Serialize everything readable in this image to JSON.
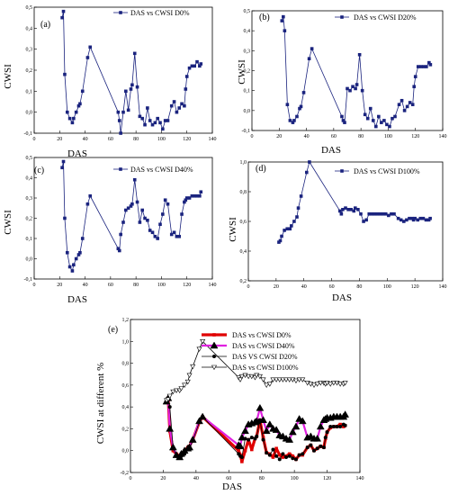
{
  "figure": {
    "panels": [
      {
        "label": "(a)",
        "xlabel": "DAS",
        "ylabel": "CWSI",
        "legend": "DAS vs CWSI D0%",
        "xticks": [
          "0",
          "20",
          "40",
          "60",
          "80",
          "100",
          "120",
          "140"
        ],
        "yticks": [
          "-0,1",
          "0,0",
          "0,1",
          "0,2",
          "0,3",
          "0,4",
          "0,5"
        ]
      },
      {
        "label": "(b)",
        "xlabel": "DAS",
        "ylabel": "CWSI",
        "legend": "DAS vs CWSI D20%",
        "xticks": [
          "0",
          "20",
          "40",
          "60",
          "80",
          "100",
          "120",
          "140"
        ],
        "yticks": [
          "-0,1",
          "0,0",
          "0,1",
          "0,2",
          "0,3",
          "0,4",
          "0,5"
        ]
      },
      {
        "label": "(c)",
        "xlabel": "DAS",
        "ylabel": "CWSI",
        "legend": "DAS vs CWSI D40%",
        "xticks": [
          "0",
          "20",
          "40",
          "60",
          "80",
          "100",
          "120",
          "140"
        ],
        "yticks": [
          "-0,1",
          "0,0",
          "0,1",
          "0,2",
          "0,3",
          "0,4",
          "0,5"
        ]
      },
      {
        "label": "(d)",
        "xlabel": "DAS",
        "ylabel": "CWSI",
        "legend": "DAS vs CWSI D100%",
        "xticks": [
          "0",
          "20",
          "40",
          "60",
          "80",
          "100",
          "120",
          "140"
        ],
        "yticks": [
          "0,2",
          "0,4",
          "0,6",
          "0,8",
          "1,0"
        ]
      },
      {
        "label": "(e)",
        "xlabel": "DAS",
        "ylabel": "CWSI at different %",
        "legend": [
          "DAS vs CWSI D0%",
          "DAS vs CWSI D40%",
          "DAS VS CWSI D20%",
          "DAS vs CWSI D100%"
        ],
        "xticks": [
          "0",
          "20",
          "40",
          "60",
          "80",
          "100",
          "120",
          "140"
        ],
        "yticks": [
          "-0,2",
          "0,0",
          "0,2",
          "0,4",
          "0,6",
          "0,8",
          "1,0",
          "1,2"
        ]
      }
    ]
  },
  "chart_data": [
    {
      "type": "line",
      "panel": "(a)",
      "xlabel": "DAS",
      "ylabel": "CWSI",
      "xlim": [
        0,
        140
      ],
      "ylim": [
        -0.1,
        0.5
      ],
      "series": [
        {
          "name": "DAS vs CWSI D0%",
          "color": "#1a237e",
          "x": [
            22,
            23,
            24,
            26,
            28,
            30,
            31,
            33,
            35,
            36,
            38,
            42,
            44,
            66,
            67,
            68,
            70,
            72,
            74,
            76,
            77,
            79,
            81,
            83,
            85,
            87,
            89,
            91,
            93,
            95,
            97,
            99,
            101,
            103,
            105,
            108,
            110,
            112,
            114,
            116,
            118,
            119,
            120,
            122,
            124,
            126,
            128,
            130,
            131
          ],
          "y": [
            0.45,
            0.48,
            0.18,
            0.0,
            -0.03,
            -0.05,
            -0.03,
            0.0,
            0.03,
            0.04,
            0.1,
            0.26,
            0.31,
            0.0,
            -0.04,
            -0.1,
            0.0,
            0.1,
            0.01,
            0.11,
            0.13,
            0.28,
            0.12,
            -0.02,
            -0.03,
            -0.06,
            0.02,
            -0.04,
            -0.06,
            -0.05,
            -0.03,
            -0.05,
            -0.08,
            -0.04,
            -0.04,
            0.03,
            0.05,
            0.0,
            0.02,
            0.04,
            0.03,
            0.11,
            0.17,
            0.21,
            0.22,
            0.22,
            0.24,
            0.22,
            0.23
          ]
        }
      ]
    },
    {
      "type": "line",
      "panel": "(b)",
      "xlabel": "DAS",
      "ylabel": "CWSI",
      "xlim": [
        0,
        140
      ],
      "ylim": [
        -0.1,
        0.5
      ],
      "series": [
        {
          "name": "DAS vs CWSI D20%",
          "color": "#1a237e",
          "x": [
            22,
            23,
            24,
            26,
            28,
            30,
            31,
            33,
            35,
            36,
            38,
            42,
            44,
            66,
            67,
            68,
            70,
            72,
            74,
            76,
            77,
            79,
            81,
            83,
            85,
            87,
            89,
            91,
            93,
            95,
            97,
            99,
            101,
            103,
            105,
            108,
            110,
            112,
            114,
            116,
            118,
            119,
            120,
            122,
            124,
            126,
            128,
            130,
            131
          ],
          "y": [
            0.45,
            0.47,
            0.4,
            0.03,
            -0.05,
            -0.06,
            -0.05,
            -0.03,
            0.01,
            0.02,
            0.09,
            0.26,
            0.31,
            -0.03,
            -0.05,
            -0.06,
            0.11,
            0.1,
            0.12,
            0.11,
            0.13,
            0.28,
            0.1,
            -0.02,
            -0.04,
            0.01,
            -0.05,
            -0.08,
            -0.03,
            -0.06,
            -0.05,
            -0.07,
            -0.08,
            -0.04,
            -0.03,
            0.03,
            0.05,
            0.0,
            0.02,
            0.04,
            0.03,
            0.12,
            0.17,
            0.22,
            0.22,
            0.22,
            0.22,
            0.24,
            0.23
          ]
        }
      ]
    },
    {
      "type": "line",
      "panel": "(c)",
      "xlabel": "DAS",
      "ylabel": "CWSI",
      "xlim": [
        0,
        140
      ],
      "ylim": [
        -0.1,
        0.5
      ],
      "series": [
        {
          "name": "DAS vs CWSI D40%",
          "color": "#1a237e",
          "x": [
            22,
            23,
            24,
            26,
            28,
            30,
            31,
            33,
            35,
            36,
            38,
            42,
            44,
            66,
            67,
            68,
            70,
            72,
            74,
            76,
            77,
            79,
            81,
            83,
            85,
            87,
            89,
            91,
            93,
            95,
            97,
            99,
            101,
            103,
            105,
            108,
            110,
            112,
            114,
            116,
            118,
            119,
            120,
            122,
            124,
            126,
            128,
            130,
            131
          ],
          "y": [
            0.45,
            0.48,
            0.2,
            0.03,
            -0.04,
            -0.06,
            -0.03,
            0.0,
            0.02,
            0.03,
            0.1,
            0.27,
            0.31,
            0.05,
            0.04,
            0.12,
            0.18,
            0.24,
            0.25,
            0.26,
            0.27,
            0.39,
            0.28,
            0.18,
            0.24,
            0.2,
            0.19,
            0.14,
            0.13,
            0.11,
            0.1,
            0.17,
            0.22,
            0.29,
            0.27,
            0.12,
            0.13,
            0.11,
            0.11,
            0.22,
            0.28,
            0.29,
            0.3,
            0.3,
            0.31,
            0.31,
            0.31,
            0.31,
            0.33
          ]
        }
      ]
    },
    {
      "type": "line",
      "panel": "(d)",
      "xlabel": "DAS",
      "ylabel": "CWSI",
      "xlim": [
        0,
        140
      ],
      "ylim": [
        0.2,
        1.0
      ],
      "series": [
        {
          "name": "DAS vs CWSI D100%",
          "color": "#1a237e",
          "x": [
            22,
            23,
            24,
            26,
            28,
            30,
            31,
            33,
            35,
            36,
            38,
            42,
            44,
            66,
            67,
            68,
            70,
            72,
            74,
            76,
            77,
            79,
            81,
            83,
            85,
            87,
            89,
            91,
            93,
            95,
            97,
            99,
            101,
            103,
            105,
            108,
            110,
            112,
            114,
            116,
            118,
            119,
            120,
            122,
            124,
            126,
            128,
            130,
            131
          ],
          "y": [
            0.46,
            0.47,
            0.5,
            0.54,
            0.55,
            0.55,
            0.57,
            0.6,
            0.63,
            0.69,
            0.77,
            0.93,
            1.0,
            0.67,
            0.65,
            0.68,
            0.69,
            0.68,
            0.68,
            0.67,
            0.69,
            0.68,
            0.65,
            0.6,
            0.61,
            0.65,
            0.65,
            0.65,
            0.65,
            0.65,
            0.65,
            0.65,
            0.64,
            0.65,
            0.65,
            0.62,
            0.61,
            0.6,
            0.61,
            0.62,
            0.62,
            0.61,
            0.62,
            0.61,
            0.62,
            0.62,
            0.61,
            0.61,
            0.62
          ]
        }
      ]
    },
    {
      "type": "line",
      "panel": "(e)",
      "xlabel": "DAS",
      "ylabel": "CWSI at different %",
      "xlim": [
        0,
        140
      ],
      "ylim": [
        -0.2,
        1.2
      ],
      "series": [
        {
          "name": "DAS vs CWSI D0%",
          "color": "#e00000",
          "marker": "square",
          "x": [
            22,
            23,
            24,
            26,
            28,
            30,
            31,
            33,
            35,
            36,
            38,
            42,
            44,
            66,
            67,
            68,
            70,
            72,
            74,
            76,
            77,
            79,
            81,
            83,
            85,
            87,
            89,
            91,
            93,
            95,
            97,
            99,
            101,
            103,
            105,
            108,
            110,
            112,
            114,
            116,
            118,
            119,
            120,
            122,
            124,
            126,
            128,
            130,
            131
          ],
          "y": [
            0.45,
            0.48,
            0.18,
            0.0,
            -0.03,
            -0.05,
            -0.03,
            0.0,
            0.03,
            0.04,
            0.1,
            0.26,
            0.31,
            0.0,
            -0.04,
            -0.1,
            0.0,
            0.1,
            0.01,
            0.11,
            0.13,
            0.28,
            0.12,
            -0.02,
            -0.03,
            -0.06,
            0.02,
            -0.04,
            -0.06,
            -0.05,
            -0.03,
            -0.05,
            -0.08,
            -0.04,
            -0.04,
            0.03,
            0.05,
            0.0,
            0.02,
            0.04,
            0.03,
            0.11,
            0.17,
            0.21,
            0.22,
            0.22,
            0.24,
            0.22,
            0.23
          ]
        },
        {
          "name": "DAS vs CWSI D40%",
          "color": "#e020e0",
          "marker": "triangle",
          "x": [
            22,
            23,
            24,
            26,
            28,
            30,
            31,
            33,
            35,
            36,
            38,
            42,
            44,
            66,
            67,
            68,
            70,
            72,
            74,
            76,
            77,
            79,
            81,
            83,
            85,
            87,
            89,
            91,
            93,
            95,
            97,
            99,
            101,
            103,
            105,
            108,
            110,
            112,
            114,
            116,
            118,
            119,
            120,
            122,
            124,
            126,
            128,
            130,
            131
          ],
          "y": [
            0.45,
            0.48,
            0.2,
            0.03,
            -0.04,
            -0.06,
            -0.03,
            0.0,
            0.02,
            0.03,
            0.1,
            0.27,
            0.31,
            0.05,
            0.04,
            0.12,
            0.18,
            0.24,
            0.25,
            0.26,
            0.27,
            0.39,
            0.28,
            0.18,
            0.24,
            0.2,
            0.19,
            0.14,
            0.13,
            0.11,
            0.1,
            0.17,
            0.22,
            0.29,
            0.27,
            0.12,
            0.13,
            0.11,
            0.11,
            0.22,
            0.28,
            0.29,
            0.3,
            0.3,
            0.31,
            0.31,
            0.31,
            0.31,
            0.33
          ]
        },
        {
          "name": "DAS VS CWSI D20%",
          "color": "#000000",
          "marker": "circle",
          "x": [
            22,
            23,
            24,
            26,
            28,
            30,
            31,
            33,
            35,
            36,
            38,
            42,
            44,
            66,
            67,
            68,
            70,
            72,
            74,
            76,
            77,
            79,
            81,
            83,
            85,
            87,
            89,
            91,
            93,
            95,
            97,
            99,
            101,
            103,
            105,
            108,
            110,
            112,
            114,
            116,
            118,
            119,
            120,
            122,
            124,
            126,
            128,
            130,
            131
          ],
          "y": [
            0.45,
            0.47,
            0.4,
            0.03,
            -0.05,
            -0.06,
            -0.05,
            -0.03,
            0.01,
            0.02,
            0.09,
            0.26,
            0.31,
            -0.03,
            -0.05,
            -0.06,
            0.11,
            0.1,
            0.12,
            0.11,
            0.13,
            0.28,
            0.1,
            -0.02,
            -0.04,
            0.01,
            -0.05,
            -0.08,
            -0.03,
            -0.06,
            -0.05,
            -0.07,
            -0.08,
            -0.04,
            -0.03,
            0.03,
            0.05,
            0.0,
            0.02,
            0.04,
            0.03,
            0.12,
            0.17,
            0.22,
            0.22,
            0.22,
            0.22,
            0.24,
            0.23
          ]
        },
        {
          "name": "DAS vs CWSI D100%",
          "color": "#000000",
          "marker": "open-triangle-down",
          "x": [
            22,
            23,
            24,
            26,
            28,
            30,
            31,
            33,
            35,
            36,
            38,
            42,
            44,
            66,
            67,
            68,
            70,
            72,
            74,
            76,
            77,
            79,
            81,
            83,
            85,
            87,
            89,
            91,
            93,
            95,
            97,
            99,
            101,
            103,
            105,
            108,
            110,
            112,
            114,
            116,
            118,
            119,
            120,
            122,
            124,
            126,
            128,
            130,
            131
          ],
          "y": [
            0.46,
            0.47,
            0.5,
            0.54,
            0.55,
            0.55,
            0.57,
            0.6,
            0.63,
            0.69,
            0.77,
            0.93,
            1.0,
            0.67,
            0.65,
            0.68,
            0.69,
            0.68,
            0.68,
            0.67,
            0.69,
            0.68,
            0.65,
            0.6,
            0.61,
            0.65,
            0.65,
            0.65,
            0.65,
            0.65,
            0.65,
            0.65,
            0.64,
            0.65,
            0.65,
            0.62,
            0.61,
            0.6,
            0.61,
            0.62,
            0.62,
            0.61,
            0.62,
            0.61,
            0.62,
            0.62,
            0.61,
            0.61,
            0.62
          ]
        }
      ]
    }
  ]
}
